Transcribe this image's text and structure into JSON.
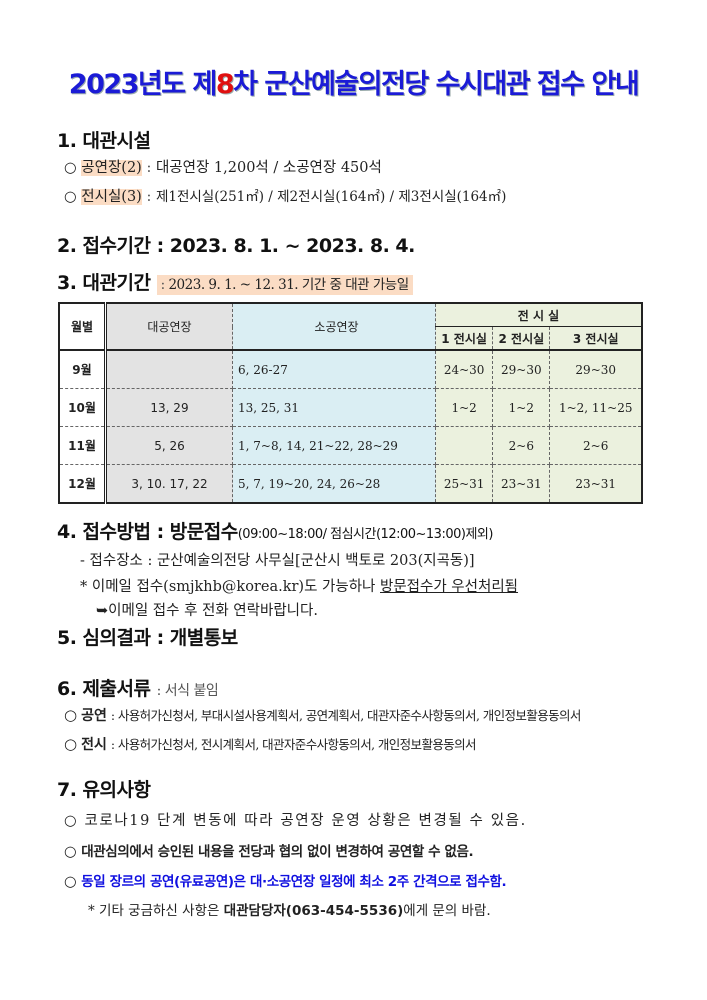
{
  "title": {
    "pre": "2023년도 제",
    "num": "8",
    "post": "차 군산예술의전당 수시대관 접수 안내"
  },
  "s1": {
    "heading": "1. 대관시설",
    "items": [
      {
        "bullet": "○",
        "label": "공연장(2)",
        "sep": ":",
        "text": "대공연장 1,200석 / 소공연장 450석"
      },
      {
        "bullet": "○",
        "label": "전시실(3)",
        "sep": ":",
        "text": "제1전시실(251㎡) / 제2전시실(164㎡) / 제3전시실(164㎡)"
      }
    ]
  },
  "s2": {
    "heading": "2. 접수기간 : 2023. 8. 1. ~ 2023. 8. 4."
  },
  "s3": {
    "heading": "3. 대관기간",
    "sep": ":",
    "text": "2023. 9. 1. ~ 12. 31. 기간 중 대관 가능일"
  },
  "table": {
    "header": [
      "월별",
      "대공연장",
      "소공연장",
      "전 시 실",
      "1 전시실",
      "2 전시실",
      "3 전시실"
    ],
    "rows": [
      [
        "9월",
        null,
        "6, 26-27",
        "24~30",
        "29~30",
        "29~30"
      ],
      [
        "10월",
        "13, 29",
        "13, 25, 31",
        "1~2",
        "1~2",
        "1~2, 11~25"
      ],
      [
        "11월",
        "5, 26",
        "1, 7~8, 14, 21~22, 28~29",
        null,
        "2~6",
        "2~6"
      ],
      [
        "12월",
        "3, 10. 17, 22",
        "5, 7, 19~20, 24, 26~28",
        "25~31",
        "23~31",
        "23~31"
      ]
    ]
  },
  "s4": {
    "heading": "4. 접수방법 : 방문접수",
    "detail": "(09:00~18:00/ 점심시간(12:00~13:00)제외)",
    "place": "- 접수장소 : 군산예술의전당 사무실[군산시 백토로 203(지곡동)]",
    "email": {
      "pre": "* 이메일 접수(smjkhb@korea.kr)도 가능하나 ",
      "underline": "방문접수가 우선처리됨"
    },
    "note": "➥이메일 접수 후 전화 연락바랍니다."
  },
  "s5": {
    "heading": "5. 심의결과 : 개별통보"
  },
  "s6": {
    "heading": "6. 제출서류",
    "note": ": 서식 붙임",
    "items": [
      {
        "bullet": "○",
        "label": "공연",
        "text": ": 사용허가신청서, 부대시설사용계획서, 공연계획서, 대관자준수사항동의서, 개인정보활용동의서"
      },
      {
        "bullet": "○",
        "label": "전시",
        "text": ": 사용허가신청서, 전시계획서, 대관자준수사항동의서, 개인정보활용동의서"
      }
    ]
  },
  "s7": {
    "heading": "7. 유의사항",
    "items": [
      {
        "bullet": "○",
        "text": "코로나19 단계 변동에 따라 공연장 운영 상황은 변경될 수 있음."
      },
      {
        "bullet": "○",
        "text": "대관심의에서 승인된 내용을 전당과 협의 없이 변경하여 공연할 수 없음."
      },
      {
        "bullet": "○",
        "text": "동일 장르의 공연(유료공연)은 대·소공연장 일정에 최소 2주 간격으로 접수함."
      }
    ],
    "footer": {
      "pre": "* 기타 궁금하신 사항은 ",
      "bold": "대관담당자(063-454-5536)",
      "post": "에게 문의 바람."
    }
  }
}
